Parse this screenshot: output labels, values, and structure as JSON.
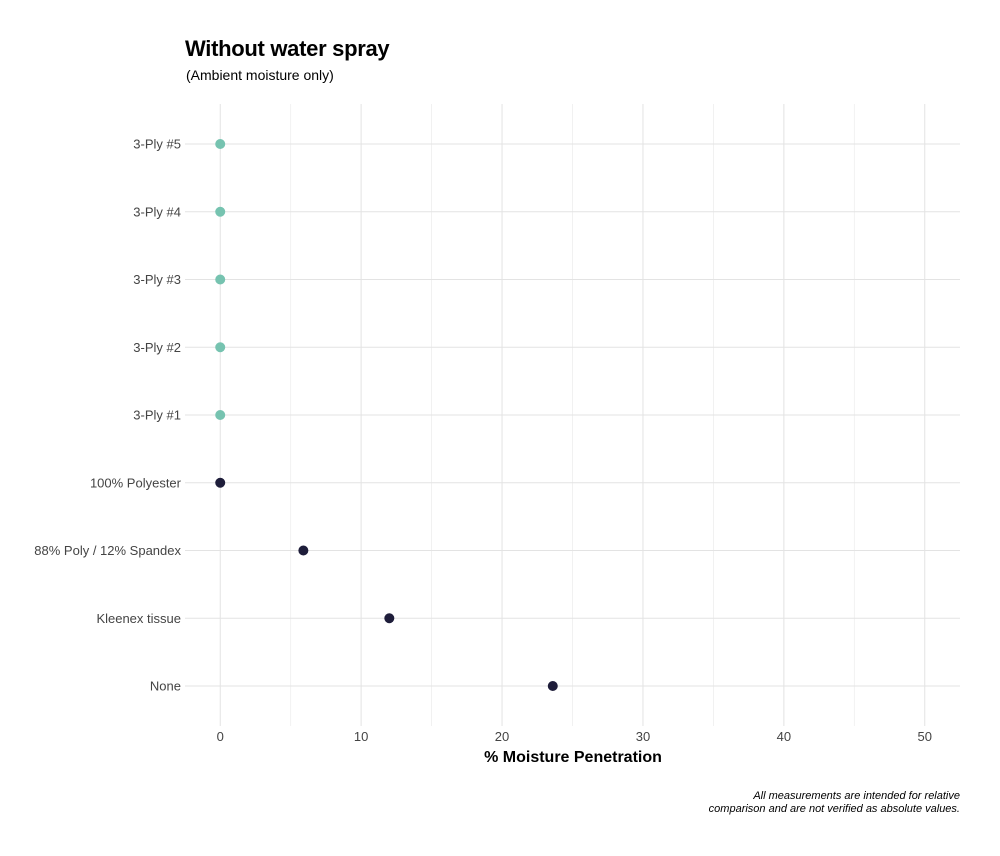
{
  "chart_data": {
    "type": "scatter",
    "title": "Without water spray",
    "subtitle": "(Ambient moisture only)",
    "xlabel": "% Moisture Penetration",
    "ylabel": "",
    "xlim": [
      -2.5,
      52.5
    ],
    "xticks": [
      0,
      10,
      20,
      30,
      40,
      50
    ],
    "grid": true,
    "categories": [
      "None",
      "Kleenex tissue",
      "88% Poly / 12% Spandex",
      "100% Polyester",
      "3-Ply #1",
      "3-Ply #2",
      "3-Ply #3",
      "3-Ply #4",
      "3-Ply #5"
    ],
    "values": [
      23.6,
      12.0,
      5.9,
      0.0,
      0.0,
      0.0,
      0.0,
      0.0,
      0.0
    ],
    "point_colors": [
      "#1e1d3a",
      "#1e1d3a",
      "#1e1d3a",
      "#1e1d3a",
      "#76c3b0",
      "#76c3b0",
      "#76c3b0",
      "#76c3b0",
      "#76c3b0"
    ],
    "caption": [
      "All measurements are intended for relative",
      "comparison and are not verified as absolute values."
    ]
  }
}
